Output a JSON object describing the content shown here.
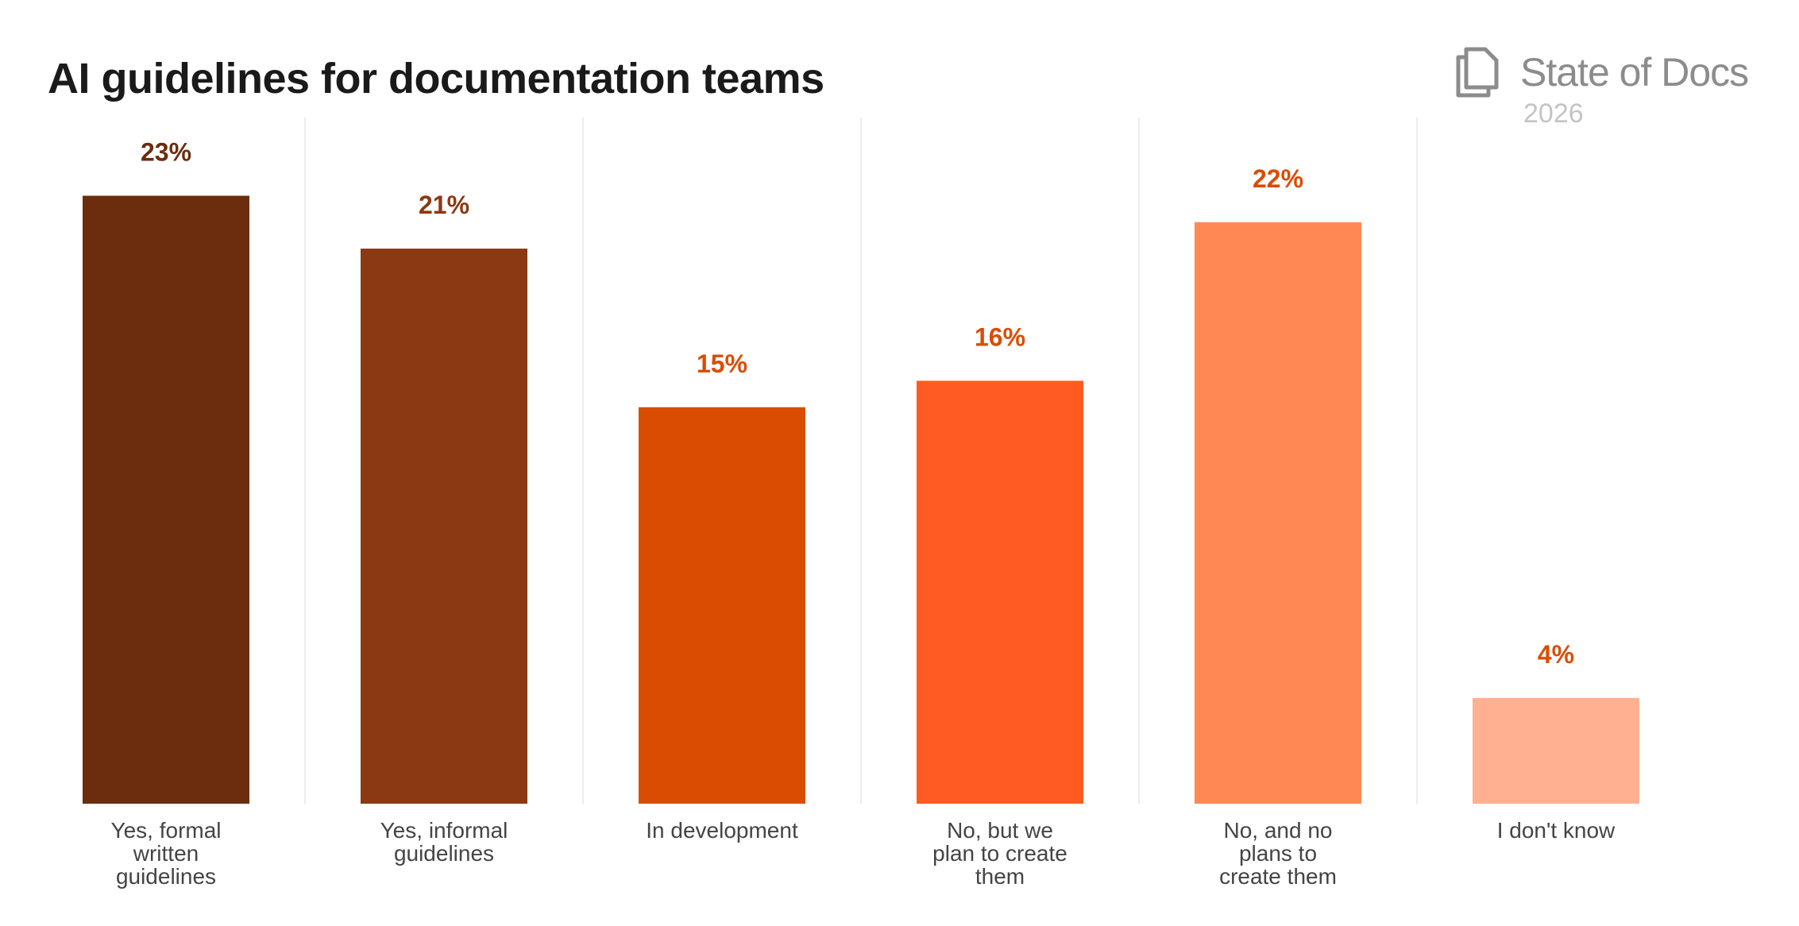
{
  "brand": {
    "name": "State of Docs",
    "year": "2026"
  },
  "chart_data": {
    "type": "bar",
    "title": "AI guidelines for documentation teams",
    "xlabel": "",
    "ylabel": "",
    "ylim": [
      0,
      26.5
    ],
    "grid": false,
    "categories": [
      "Yes, formal written guidelines",
      "Yes, informal guidelines",
      "In development",
      "No, but we plan to create them",
      "No, and no plans to create them",
      "I don't know"
    ],
    "category_lines": [
      [
        "Yes, formal",
        "written",
        "guidelines"
      ],
      [
        "Yes, informal",
        "guidelines"
      ],
      [
        "In development"
      ],
      [
        "No, but we",
        "plan to create",
        "them"
      ],
      [
        "No, and no",
        "plans to",
        "create them"
      ],
      [
        "I don't know"
      ]
    ],
    "values": [
      23,
      21,
      15,
      16,
      22,
      4
    ],
    "data_labels": [
      "23%",
      "21%",
      "15%",
      "16%",
      "22%",
      "4%"
    ],
    "bar_colors": [
      "#6b2d0e",
      "#8b3913",
      "#db4c03",
      "#ff5b22",
      "#ff8855",
      "#ffb090"
    ],
    "label_colors": [
      "#6b2d0e",
      "#8b3913",
      "#db4c03",
      "#db4c03",
      "#db4c03",
      "#db4c03"
    ]
  }
}
